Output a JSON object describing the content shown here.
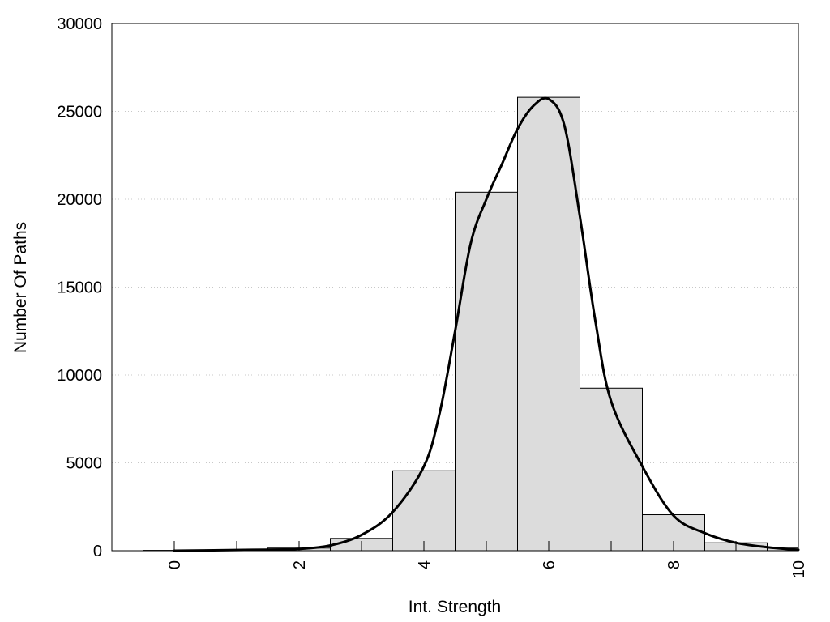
{
  "chart_data": {
    "type": "bar",
    "title": "",
    "xlabel": "Int. Strength",
    "ylabel": "Number Of Paths",
    "xlim": [
      -1,
      10
    ],
    "ylim": [
      0,
      30000
    ],
    "x_ticks": [
      0,
      2,
      4,
      6,
      8,
      10
    ],
    "x_tick_labels": [
      "0",
      "2",
      "4",
      "6",
      "8",
      "10"
    ],
    "y_ticks": [
      0,
      5000,
      10000,
      15000,
      20000,
      25000,
      30000
    ],
    "y_tick_labels": [
      "0",
      "5000",
      "10000",
      "15000",
      "20000",
      "25000",
      "30000"
    ],
    "grid": "y-dotted",
    "bar_color": "#dcdcdc",
    "bar_edge_color": "#000000",
    "line_color": "#000000",
    "bin_width": 1,
    "bins": [
      0,
      1,
      2,
      3,
      4,
      5,
      6,
      7,
      8,
      9,
      10
    ],
    "values": [
      20,
      50,
      150,
      700,
      4550,
      20400,
      25800,
      9250,
      2050,
      450,
      150
    ],
    "density_curve": {
      "x": [
        0,
        0.5,
        1,
        1.5,
        2,
        2.5,
        3,
        3.5,
        4,
        4.25,
        4.5,
        4.75,
        5,
        5.25,
        5.5,
        5.75,
        6,
        6.25,
        6.5,
        6.75,
        7,
        7.5,
        8,
        8.5,
        9,
        9.5,
        10
      ],
      "y": [
        0,
        20,
        40,
        60,
        100,
        300,
        900,
        2200,
        4800,
        7800,
        12500,
        17500,
        20000,
        22000,
        24000,
        25300,
        25700,
        24200,
        19000,
        13000,
        8500,
        4800,
        2000,
        1000,
        450,
        200,
        50
      ]
    }
  }
}
